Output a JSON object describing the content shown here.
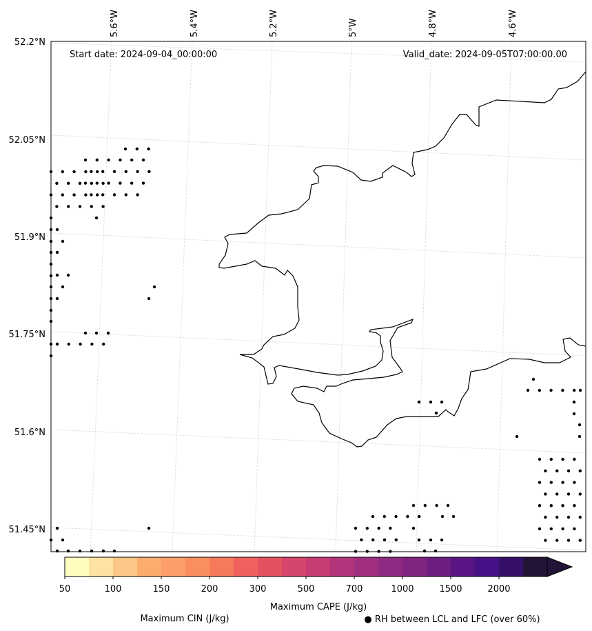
{
  "map": {
    "start_date": "Start date: 2024-09-04_00:00:00",
    "valid_date": "Valid_date: 2024-09-05T07:00:00.00",
    "lon_labels": [
      "5.6°W",
      "5.4°W",
      "5.2°W",
      "5°W",
      "4.8°W",
      "4.6°W"
    ],
    "lat_labels": [
      "52.2°N",
      "52.05°N",
      "51.9°N",
      "51.75°N",
      "51.6°N",
      "51.45°N"
    ]
  },
  "colorbar": {
    "tick_labels": [
      "50",
      "100",
      "150",
      "200",
      "300",
      "500",
      "700",
      "1000",
      "1500",
      "2000"
    ],
    "colors": [
      "#fefdbf",
      "#fde2a1",
      "#fdc787",
      "#fdac70",
      "#fc9e6a",
      "#fa8e5f",
      "#f57a5a",
      "#f0605d",
      "#e4525f",
      "#d6456b",
      "#c53d73",
      "#b2357b",
      "#a12f7f",
      "#8e2a81",
      "#7f247f",
      "#6c1e81",
      "#591584",
      "#461187",
      "#350f6a",
      "#211437"
    ],
    "title": "Maximum CAPE (J/kg)",
    "cin_label": "Maximum CIN (J/kg)",
    "cin_color": "#ff0000",
    "rh_label": "● RH between LCL and LFC (over 60%)"
  }
}
